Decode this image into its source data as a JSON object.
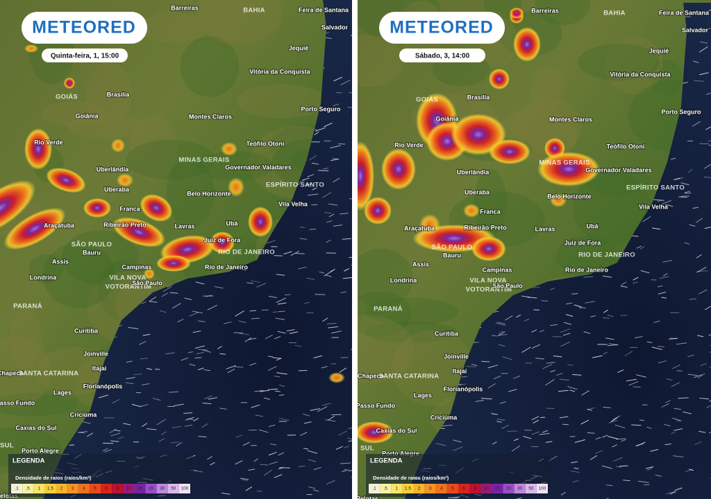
{
  "panels": [
    {
      "logo": "METEORED",
      "time": "Quinta-feira, 1, 15:00"
    },
    {
      "logo": "METEORED",
      "time": "Sábado, 3, 14:00"
    }
  ],
  "places": [
    "Barreiras",
    "BAHIA",
    "Feira de Santana",
    "Salvador",
    "Jequié",
    "Vitória da Conquista",
    "GOIÁS",
    "Brasília",
    "Porto Seguro",
    "Goiânia",
    "Montes Claros",
    "Teófilo Otoni",
    "Rio Verde",
    "MINAS GERAIS",
    "Governador Valadares",
    "Uberlândia",
    "ESPÍRITO SANTO",
    "Uberaba",
    "Belo Horizonte",
    "Vila Velha",
    "Franca",
    "Araçatuba",
    "Ribeirão Preto",
    "Lavras",
    "Ubá",
    "Juiz de Fora",
    "SÃO PAULO",
    "RIO DE JANEIRO",
    "Bauru",
    "Assis",
    "Campinas",
    "Rio de Janeiro",
    "Londrina",
    "VILA NOVA",
    "VOTORANTIM",
    "São Paulo",
    "PARANÁ",
    "Curitiba",
    "Joinville",
    "Itajaí",
    "Chapecó",
    "SANTA CATARINA",
    "Florianópolis",
    "Lages",
    "Passo Fundo",
    "Criciúma",
    "Caxias do Sul",
    "SUL",
    "Porto Alegre",
    "Pelotas"
  ],
  "legend": {
    "title": "LEGENDA",
    "subtitle": "Densidade de raios (raios/km²)",
    "scale": [
      ".1",
      ".5",
      "1",
      "1.5",
      "2",
      "3",
      "4",
      "5",
      "6",
      "8",
      "10",
      "15",
      "20",
      "30",
      "50",
      "100"
    ]
  }
}
